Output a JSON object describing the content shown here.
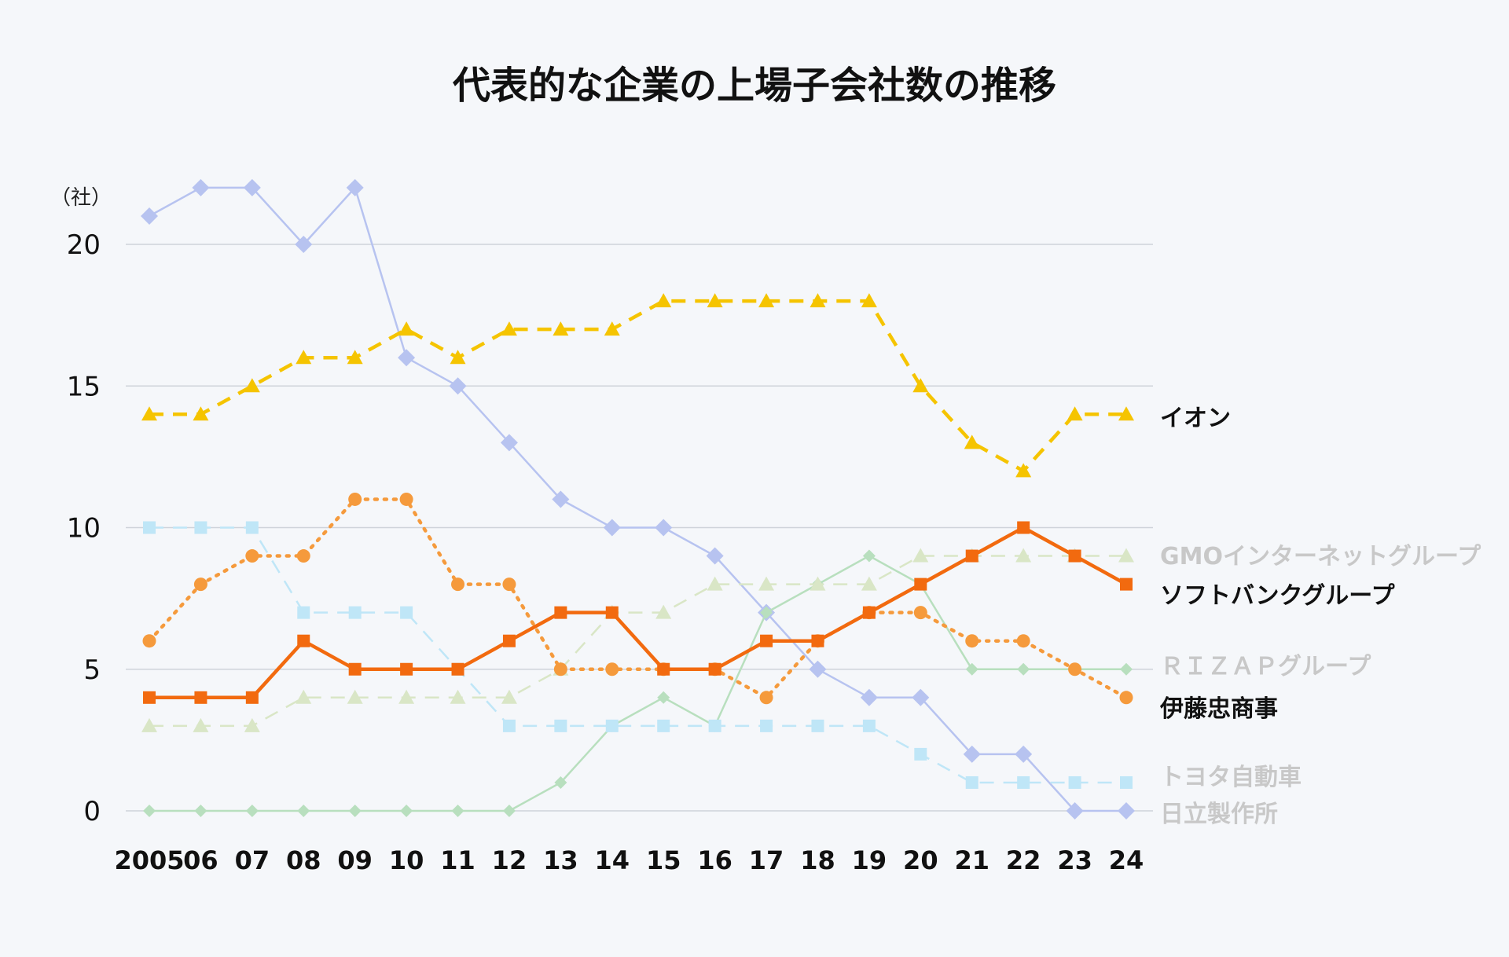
{
  "chart_data": {
    "type": "line",
    "title": "代表的な企業の上場子会社数の推移",
    "y_unit": "（社）",
    "ylim": [
      0,
      22
    ],
    "yticks": [
      0,
      5,
      10,
      15,
      20
    ],
    "grid": true,
    "legend_placement": "right (direct labels)",
    "x": [
      "2005",
      "06",
      "07",
      "08",
      "09",
      "10",
      "11",
      "12",
      "13",
      "14",
      "15",
      "16",
      "17",
      "18",
      "19",
      "20",
      "21",
      "22",
      "23",
      "24"
    ],
    "series": [
      {
        "name": "日立製作所",
        "color": "#b7c3f0",
        "marker": "diamond",
        "dash": "solid",
        "emphasis": false,
        "values": [
          21,
          22,
          22,
          20,
          22,
          16,
          15,
          13,
          11,
          10,
          10,
          9,
          7,
          5,
          4,
          4,
          2,
          2,
          0,
          0
        ]
      },
      {
        "name": "ＲＩＺＡＰグループ",
        "color": "#b8dfbe",
        "marker": "diamond-small",
        "dash": "solid",
        "emphasis": false,
        "values": [
          0,
          0,
          0,
          0,
          0,
          0,
          0,
          0,
          1,
          3,
          4,
          3,
          7,
          8,
          9,
          8,
          5,
          5,
          5,
          5
        ]
      },
      {
        "name": "トヨタ自動車",
        "color": "#bfe6f7",
        "marker": "square",
        "dash": "dashed",
        "emphasis": false,
        "values": [
          10,
          10,
          10,
          7,
          7,
          7,
          5,
          3,
          3,
          3,
          3,
          3,
          3,
          3,
          3,
          2,
          1,
          1,
          1,
          1
        ]
      },
      {
        "name": "GMOインターネットグループ",
        "color": "#d9e6c6",
        "marker": "triangle",
        "dash": "dashed",
        "emphasis": false,
        "values": [
          3,
          3,
          3,
          4,
          4,
          4,
          4,
          4,
          5,
          7,
          7,
          8,
          8,
          8,
          8,
          9,
          9,
          9,
          9,
          9
        ]
      },
      {
        "name": "伊藤忠商事",
        "color": "#f59a3c",
        "marker": "circle",
        "dash": "dotted",
        "emphasis": true,
        "values": [
          6,
          8,
          9,
          9,
          11,
          11,
          8,
          8,
          5,
          5,
          5,
          5,
          4,
          6,
          7,
          7,
          6,
          6,
          5,
          4
        ]
      },
      {
        "name": "ソフトバンクグループ",
        "color": "#f26a0f",
        "marker": "square",
        "dash": "solid",
        "emphasis": true,
        "values": [
          4,
          4,
          4,
          6,
          5,
          5,
          5,
          6,
          7,
          7,
          5,
          5,
          6,
          6,
          7,
          8,
          9,
          10,
          9,
          8
        ]
      },
      {
        "name": "イオン",
        "color": "#f5c400",
        "marker": "triangle",
        "dash": "dashed",
        "emphasis": true,
        "values": [
          14,
          14,
          15,
          16,
          16,
          17,
          16,
          17,
          17,
          17,
          18,
          18,
          18,
          18,
          18,
          15,
          13,
          12,
          14,
          14
        ]
      }
    ],
    "label_colors": {
      "emphasis": "#111111",
      "muted": "#c8c8c8"
    },
    "gridline_color": "#cfd3da",
    "background": "#f5f7fa"
  }
}
